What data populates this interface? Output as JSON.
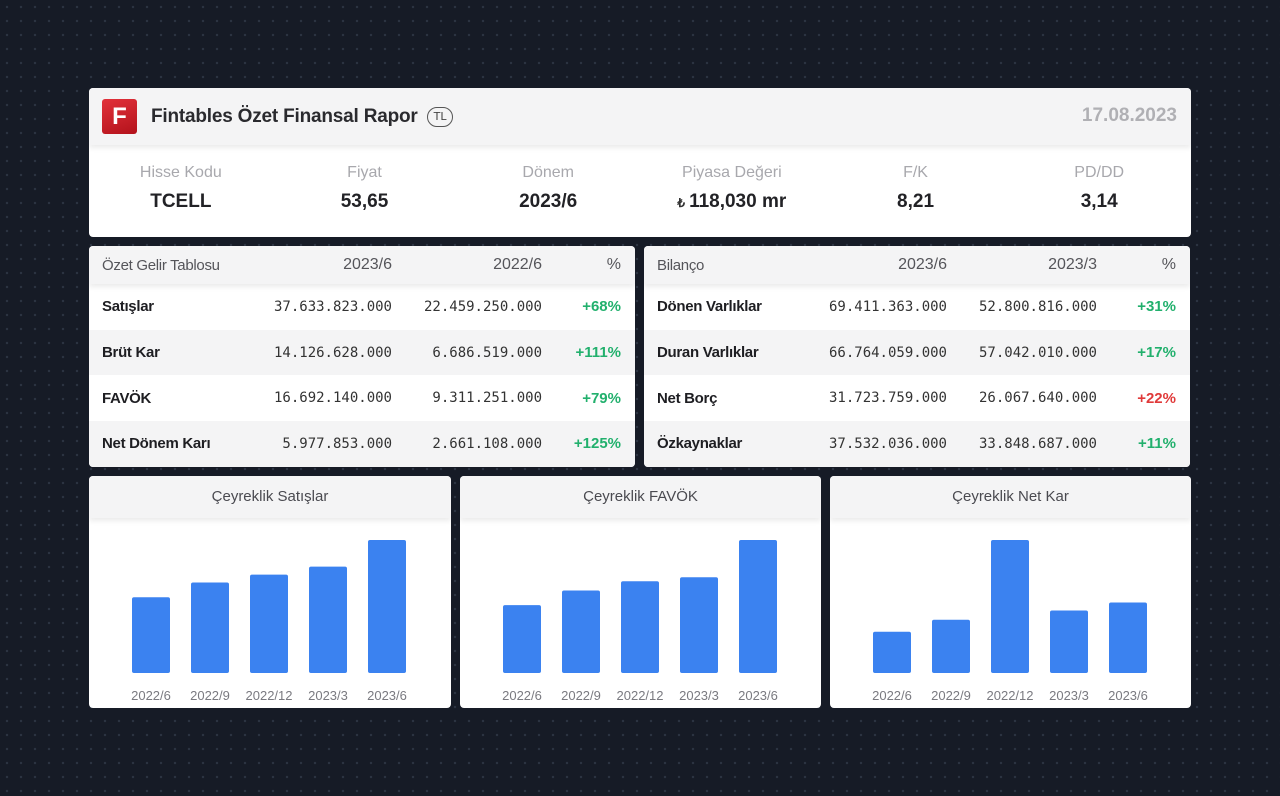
{
  "header": {
    "logo_letter": "F",
    "title": "Fintables Özet Finansal Rapor",
    "currency_badge": "TL",
    "date": "17.08.2023",
    "metrics": [
      {
        "label": "Hisse Kodu",
        "value": "TCELL"
      },
      {
        "label": "Fiyat",
        "value": "53,65"
      },
      {
        "label": "Dönem",
        "value": "2023/6"
      },
      {
        "label": "Piyasa Değeri",
        "currency_symbol": "₺",
        "value": "118,030 mr"
      },
      {
        "label": "F/K",
        "value": "8,21"
      },
      {
        "label": "PD/DD",
        "value": "3,14"
      }
    ]
  },
  "income": {
    "headers": [
      "Özet Gelir Tablosu",
      "2023/6",
      "2022/6",
      "%"
    ],
    "rows": [
      {
        "name": "Satışlar",
        "a": "37.633.823.000",
        "b": "22.459.250.000",
        "pct": "+68%"
      },
      {
        "name": "Brüt Kar",
        "a": "14.126.628.000",
        "b": "6.686.519.000",
        "pct": "+111%"
      },
      {
        "name": "FAVÖK",
        "a": "16.692.140.000",
        "b": "9.311.251.000",
        "pct": "+79%"
      },
      {
        "name": "Net Dönem Karı",
        "a": "5.977.853.000",
        "b": "2.661.108.000",
        "pct": "+125%"
      }
    ]
  },
  "balance": {
    "headers": [
      "Bilanço",
      "2023/6",
      "2023/3",
      "%"
    ],
    "rows": [
      {
        "name": "Dönen Varlıklar",
        "a": "69.411.363.000",
        "b": "52.800.816.000",
        "pct": "+31%"
      },
      {
        "name": "Duran Varlıklar",
        "a": "66.764.059.000",
        "b": "57.042.010.000",
        "pct": "+17%"
      },
      {
        "name": "Net Borç",
        "a": "31.723.759.000",
        "b": "26.067.640.000",
        "pct": "+22%"
      },
      {
        "name": "Özkaynaklar",
        "a": "37.532.036.000",
        "b": "33.848.687.000",
        "pct": "+11%"
      }
    ]
  },
  "colors": {
    "positive": "#22b06d",
    "negative": "#e03a3a",
    "bar": "#3b82f0",
    "logo": "#d11f28"
  },
  "chart_data": [
    {
      "type": "bar",
      "title": "Çeyreklik Satışlar",
      "categories": [
        "2022/6",
        "2022/9",
        "2022/12",
        "2023/3",
        "2023/6"
      ],
      "values": [
        57,
        68,
        74,
        80,
        100
      ],
      "ylim": [
        0,
        100
      ]
    },
    {
      "type": "bar",
      "title": "Çeyreklik FAVÖK",
      "categories": [
        "2022/6",
        "2022/9",
        "2022/12",
        "2023/3",
        "2023/6"
      ],
      "values": [
        51,
        62,
        69,
        72,
        100
      ],
      "ylim": [
        0,
        100
      ]
    },
    {
      "type": "bar",
      "title": "Çeyreklik Net Kar",
      "categories": [
        "2022/6",
        "2022/9",
        "2022/12",
        "2023/3",
        "2023/6"
      ],
      "values": [
        31,
        40,
        100,
        47,
        53
      ],
      "ylim": [
        0,
        100
      ]
    }
  ]
}
